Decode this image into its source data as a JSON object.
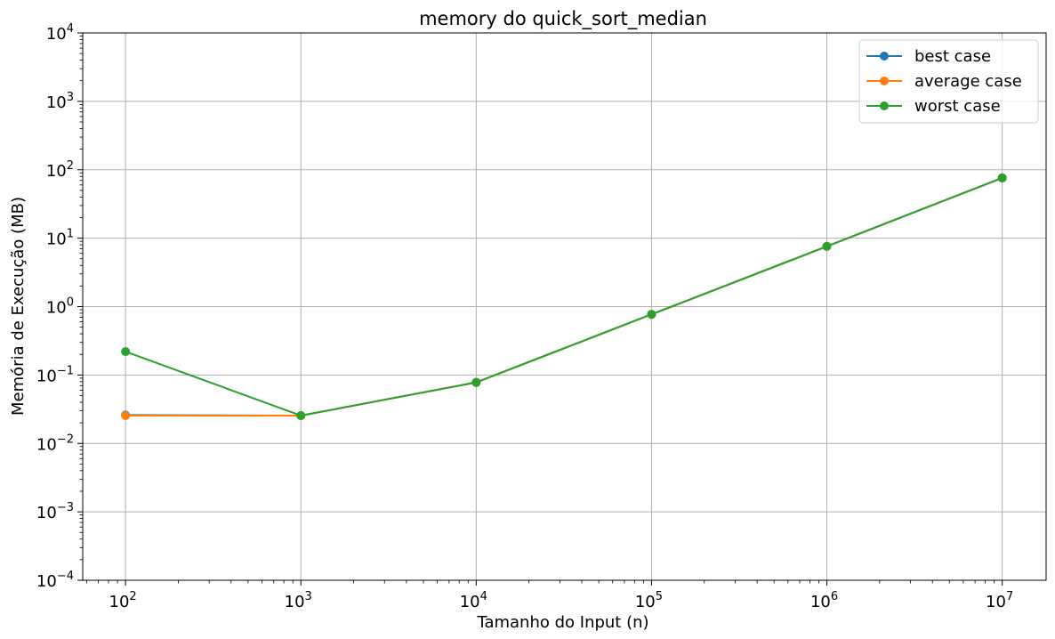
{
  "chart_data": {
    "type": "line",
    "title": "memory do quick_sort_median",
    "xlabel": "Tamanho do Input (n)",
    "ylabel": "Memória de Execução (MB)",
    "xscale": "log",
    "yscale": "log",
    "xlim": [
      57,
      17800000
    ],
    "ylim": [
      0.0001,
      10000
    ],
    "grid": true,
    "legend_position": "top-right",
    "x": [
      100,
      1000,
      10000,
      100000,
      1000000,
      10000000
    ],
    "x_ticks": [
      {
        "value": 100,
        "base": "10",
        "exp": "2"
      },
      {
        "value": 1000,
        "base": "10",
        "exp": "3"
      },
      {
        "value": 10000,
        "base": "10",
        "exp": "4"
      },
      {
        "value": 100000,
        "base": "10",
        "exp": "5"
      },
      {
        "value": 1000000,
        "base": "10",
        "exp": "6"
      },
      {
        "value": 10000000,
        "base": "10",
        "exp": "7"
      }
    ],
    "y_ticks": [
      {
        "value": 0.0001,
        "base": "10",
        "exp": "−4"
      },
      {
        "value": 0.001,
        "base": "10",
        "exp": "−3"
      },
      {
        "value": 0.01,
        "base": "10",
        "exp": "−2"
      },
      {
        "value": 0.1,
        "base": "10",
        "exp": "−1"
      },
      {
        "value": 1,
        "base": "10",
        "exp": "0"
      },
      {
        "value": 10,
        "base": "10",
        "exp": "1"
      },
      {
        "value": 100,
        "base": "10",
        "exp": "2"
      },
      {
        "value": 1000,
        "base": "10",
        "exp": "3"
      },
      {
        "value": 10000,
        "base": "10",
        "exp": "4"
      }
    ],
    "series": [
      {
        "name": "best case",
        "color": "#1f77b4",
        "values": [
          0.026,
          0.0255,
          0.078,
          0.77,
          7.6,
          76
        ]
      },
      {
        "name": "average case",
        "color": "#ff7f0e",
        "values": [
          0.0255,
          0.0255,
          0.078,
          0.77,
          7.6,
          76
        ]
      },
      {
        "name": "worst case",
        "color": "#2ca02c",
        "values": [
          0.22,
          0.0255,
          0.078,
          0.77,
          7.6,
          76
        ]
      }
    ]
  }
}
